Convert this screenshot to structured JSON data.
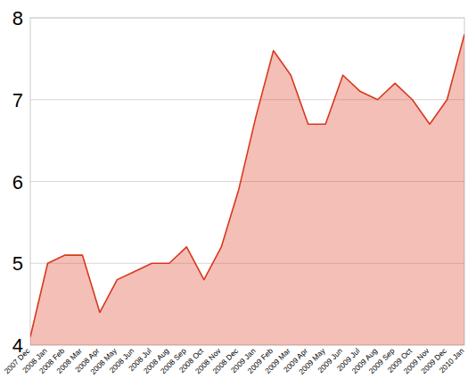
{
  "chart_data": {
    "type": "area",
    "categories": [
      "2007 Dec",
      "2008 Jan",
      "2008 Feb",
      "2008 Mar",
      "2008 Apr",
      "2008 May",
      "2008 Jun",
      "2008 Jul",
      "2008 Aug",
      "2008 Sep",
      "2008 Oct",
      "2008 Nov",
      "2008 Dec",
      "2009 Jan",
      "2009 Feb",
      "2009 Mar",
      "2009 Apr",
      "2009 May",
      "2009 Jun",
      "2009 Jul",
      "2009 Aug",
      "2009 Sep",
      "2009 Oct",
      "2009 Nov",
      "2009 Dec",
      "2010 Jan"
    ],
    "values": [
      4.1,
      5.0,
      5.1,
      5.1,
      4.4,
      4.8,
      4.9,
      5.0,
      5.0,
      5.2,
      4.8,
      5.2,
      5.9,
      6.8,
      7.6,
      7.3,
      6.7,
      6.7,
      7.3,
      7.1,
      7.0,
      7.2,
      7.0,
      6.7,
      7.0,
      7.8
    ],
    "color": "#d9381e",
    "ylim": [
      4,
      8
    ],
    "yticks": [
      4,
      5,
      6,
      7,
      8
    ],
    "grid": true
  }
}
